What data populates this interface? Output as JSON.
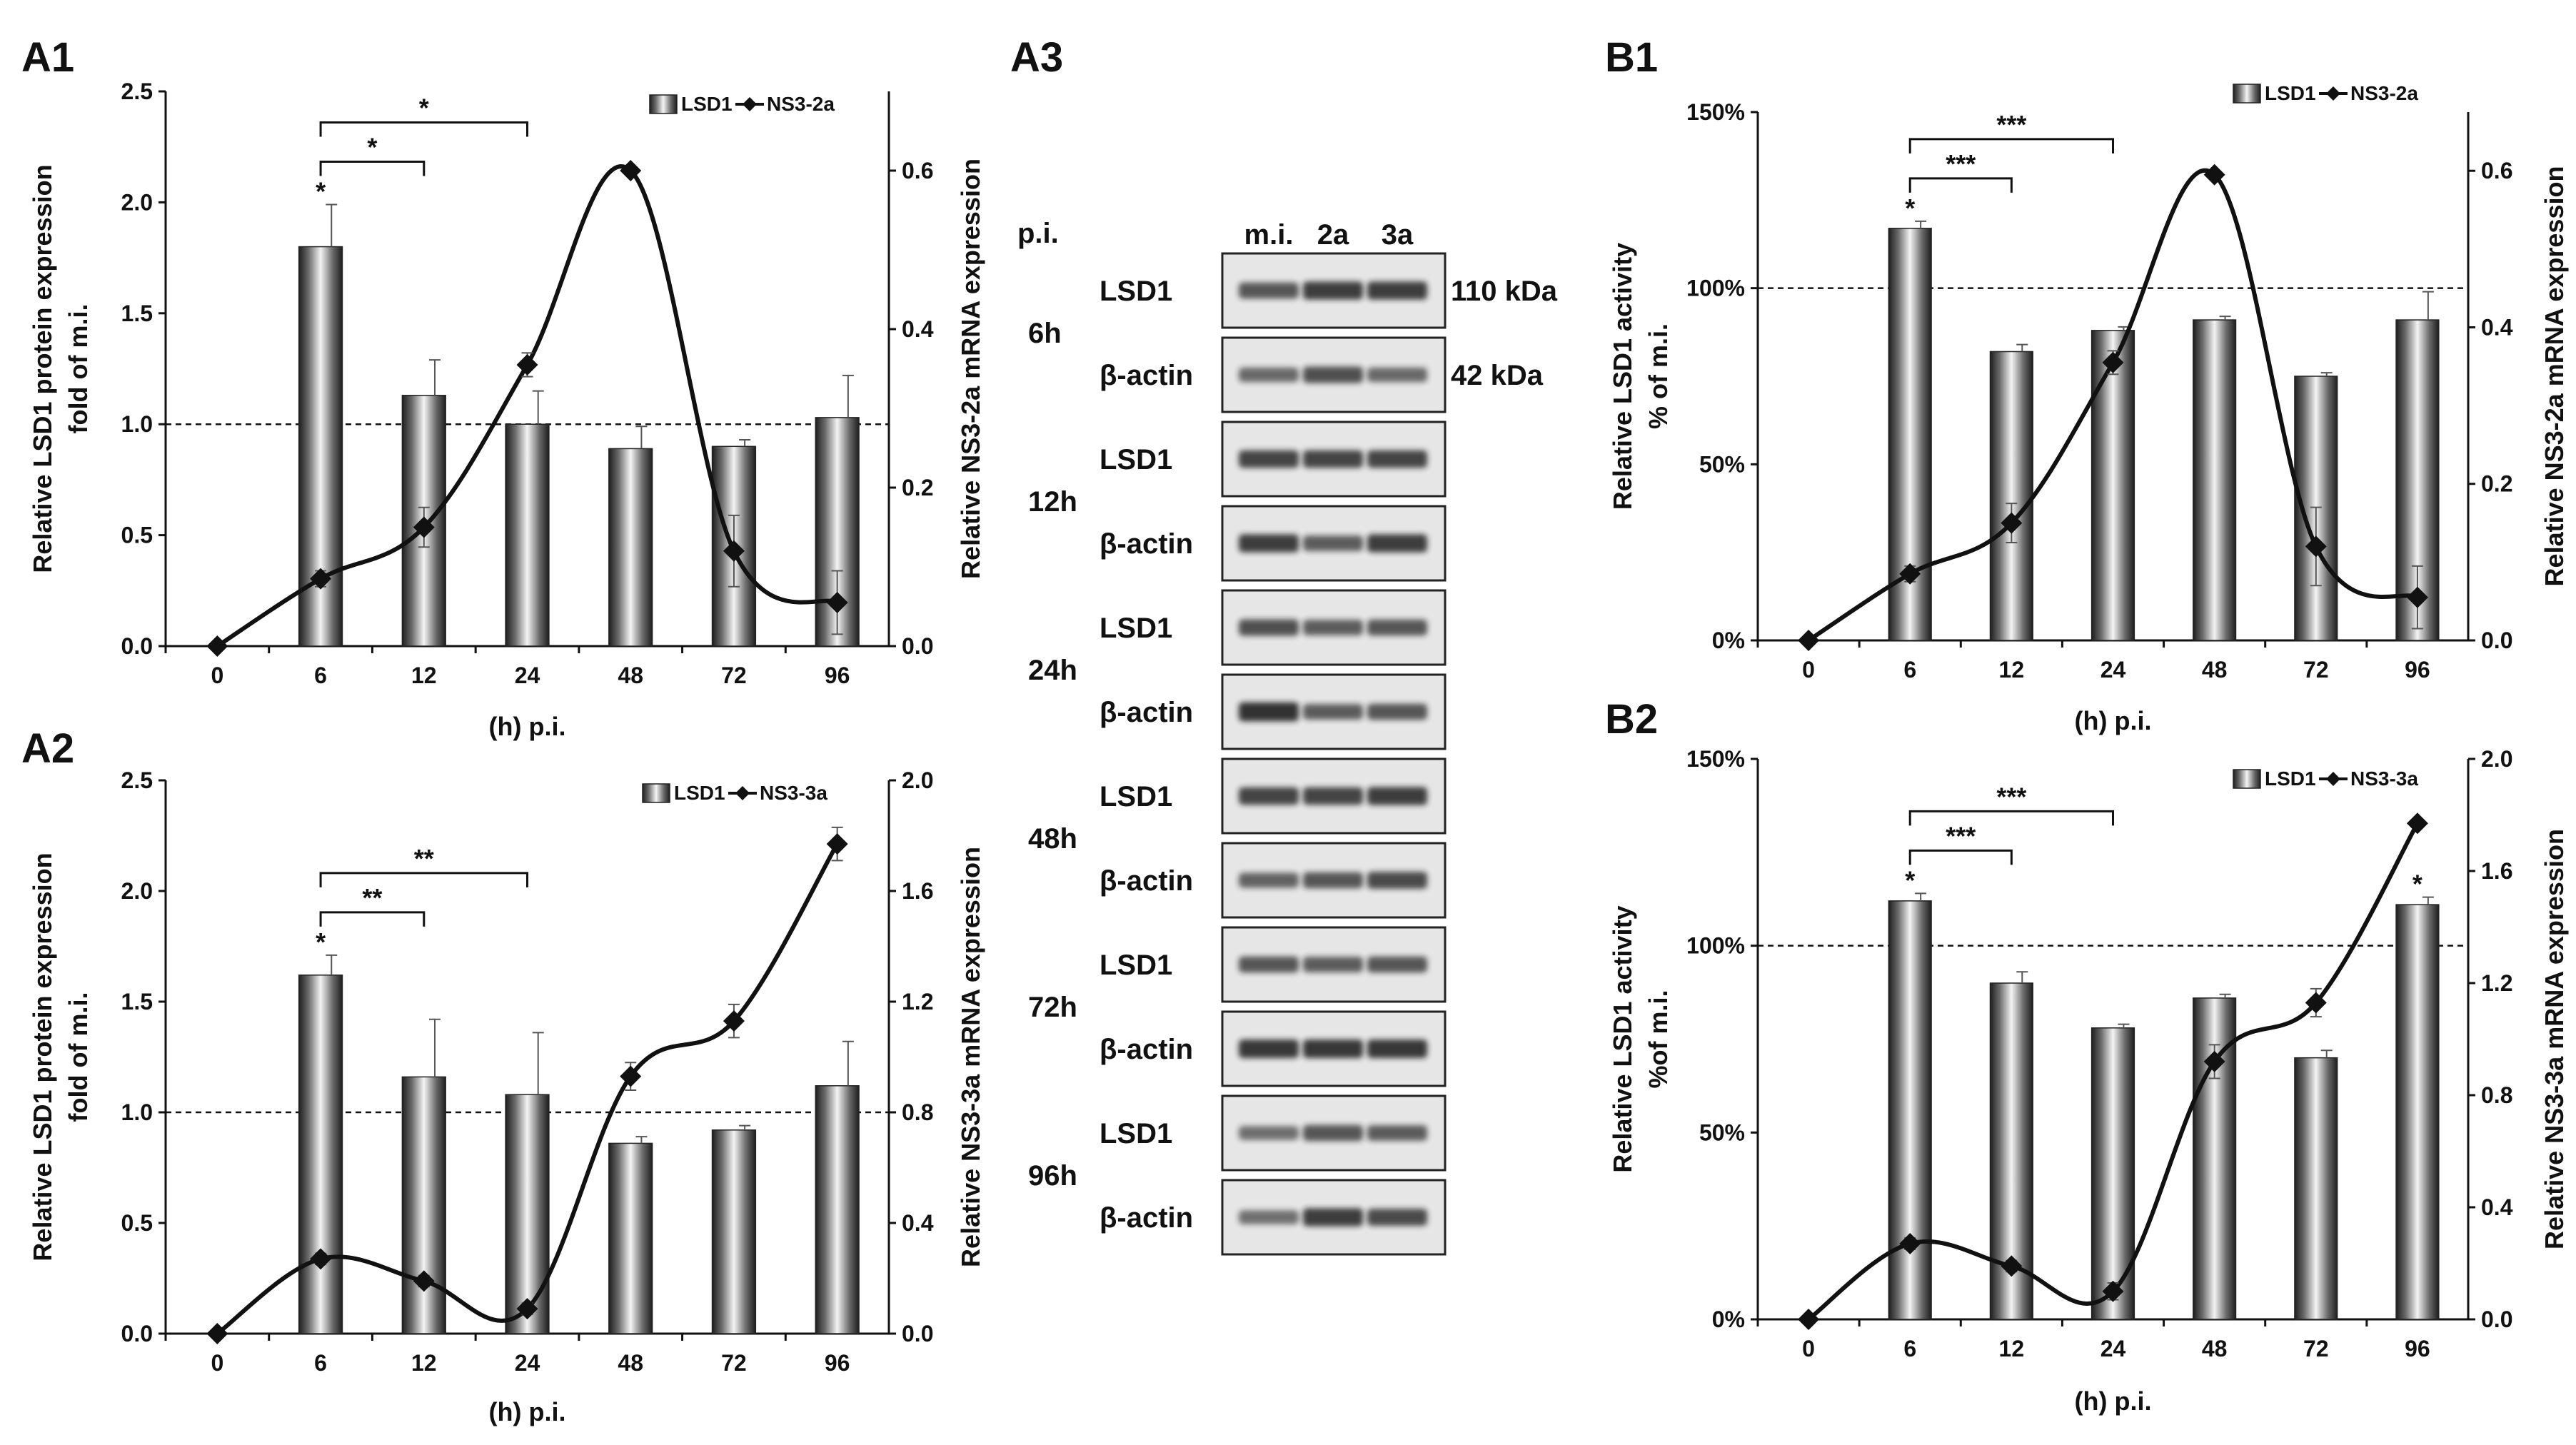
{
  "chart_data": [
    {
      "panel": "A1",
      "type": "bar+line",
      "categories": [
        "0",
        "6",
        "12",
        "24",
        "48",
        "72",
        "96"
      ],
      "xlabel": "(h) p.i.",
      "ylabel": [
        "Relative LSD1 protein expression",
        "fold of m.i."
      ],
      "ylabel_right": "Relative NS3-2a mRNA expression",
      "ylim": [
        0,
        2.5
      ],
      "yticks": [
        "0.0",
        "0.5",
        "1.0",
        "1.5",
        "2.0",
        "2.5"
      ],
      "ylim_right": [
        0,
        0.7
      ],
      "yticks_right": [
        "0.0",
        "0.2",
        "0.4",
        "0.6"
      ],
      "series": [
        {
          "name": "LSD1",
          "kind": "bar",
          "values": [
            null,
            1.8,
            1.13,
            1.0,
            0.89,
            0.9,
            1.03
          ],
          "errors": [
            null,
            0.19,
            0.16,
            0.15,
            0.1,
            0.03,
            0.19
          ]
        },
        {
          "name": "NS3-2a",
          "kind": "line",
          "values": [
            0.0,
            0.085,
            0.15,
            0.355,
            0.6,
            0.12,
            0.055
          ],
          "errors": [
            0,
            0.01,
            0.025,
            0.015,
            0,
            0.045,
            0.04
          ]
        }
      ],
      "refline": 1.0,
      "significance": [
        {
          "from": "6",
          "to": "24",
          "label": "*"
        },
        {
          "from": "6",
          "to": "12",
          "label": "*"
        }
      ],
      "bar_marks": [
        {
          "category": "6",
          "label": "*"
        }
      ],
      "legend": [
        "LSD1",
        "NS3-2a"
      ]
    },
    {
      "panel": "A2",
      "type": "bar+line",
      "categories": [
        "0",
        "6",
        "12",
        "24",
        "48",
        "72",
        "96"
      ],
      "xlabel": "(h) p.i.",
      "ylabel": [
        "Relative LSD1 protein expression",
        "fold of m.i."
      ],
      "ylabel_right": "Relative NS3-3a mRNA expression",
      "ylim": [
        0,
        2.5
      ],
      "yticks": [
        "0.0",
        "0.5",
        "1.0",
        "1.5",
        "2.0",
        "2.5"
      ],
      "ylim_right": [
        0,
        2.0
      ],
      "yticks_right": [
        "0.0",
        "0.4",
        "0.8",
        "1.2",
        "1.6",
        "2.0"
      ],
      "series": [
        {
          "name": "LSD1",
          "kind": "bar",
          "values": [
            null,
            1.62,
            1.16,
            1.08,
            0.86,
            0.92,
            1.12
          ],
          "errors": [
            null,
            0.09,
            0.26,
            0.28,
            0.03,
            0.02,
            0.2
          ]
        },
        {
          "name": "NS3-3a",
          "kind": "line",
          "values": [
            0.0,
            0.27,
            0.19,
            0.09,
            0.93,
            1.13,
            1.77
          ],
          "errors": [
            0,
            0.02,
            0.02,
            0.02,
            0.05,
            0.06,
            0.06
          ]
        }
      ],
      "refline": 1.0,
      "significance": [
        {
          "from": "6",
          "to": "24",
          "label": "**"
        },
        {
          "from": "6",
          "to": "12",
          "label": "**"
        }
      ],
      "bar_marks": [
        {
          "category": "6",
          "label": "*"
        }
      ],
      "legend": [
        "LSD1",
        "NS3-3a"
      ]
    },
    {
      "panel": "B1",
      "type": "bar+line",
      "categories": [
        "0",
        "6",
        "12",
        "24",
        "48",
        "72",
        "96"
      ],
      "xlabel": "(h) p.i.",
      "ylabel": [
        "Relative LSD1 activity",
        "% of m.i."
      ],
      "ylabel_right": "Relative NS3-2a mRNA expression",
      "ylim": [
        0,
        150
      ],
      "yticks": [
        "0%",
        "50%",
        "100%",
        "150%"
      ],
      "ylim_right": [
        0,
        0.675
      ],
      "yticks_right": [
        "0.0",
        "0.2",
        "0.4",
        "0.6"
      ],
      "series": [
        {
          "name": "LSD1",
          "kind": "bar",
          "values": [
            null,
            117,
            82,
            88,
            91,
            75,
            91
          ],
          "errors": [
            null,
            2,
            2,
            1,
            1,
            1,
            8
          ]
        },
        {
          "name": "NS3-2a",
          "kind": "line",
          "values": [
            0.0,
            0.085,
            0.15,
            0.355,
            0.595,
            0.12,
            0.055
          ],
          "errors": [
            0,
            0.01,
            0.025,
            0.015,
            0,
            0.05,
            0.04
          ]
        }
      ],
      "refline": 100,
      "significance": [
        {
          "from": "6",
          "to": "24",
          "label": "***"
        },
        {
          "from": "6",
          "to": "12",
          "label": "***"
        }
      ],
      "bar_marks": [
        {
          "category": "6",
          "label": "*"
        }
      ],
      "legend": [
        "LSD1",
        "NS3-2a"
      ]
    },
    {
      "panel": "B2",
      "type": "bar+line",
      "categories": [
        "0",
        "6",
        "12",
        "24",
        "48",
        "72",
        "96"
      ],
      "xlabel": "(h) p.i.",
      "ylabel": [
        "Relative LSD1 activity",
        "%of m.i."
      ],
      "ylabel_right": "Relative NS3-3a mRNA expression",
      "ylim": [
        0,
        150
      ],
      "yticks": [
        "0%",
        "50%",
        "100%",
        "150%"
      ],
      "ylim_right": [
        0,
        2.0
      ],
      "yticks_right": [
        "0.0",
        "0.4",
        "0.8",
        "1.2",
        "1.6",
        "2.0"
      ],
      "series": [
        {
          "name": "LSD1",
          "kind": "bar",
          "values": [
            null,
            112,
            90,
            78,
            86,
            70,
            111
          ],
          "errors": [
            null,
            2,
            3,
            1,
            1,
            2,
            2
          ]
        },
        {
          "name": "NS3-3a",
          "kind": "line",
          "values": [
            0.0,
            0.27,
            0.19,
            0.1,
            0.92,
            1.13,
            1.77
          ],
          "errors": [
            0,
            0.02,
            0.02,
            0.03,
            0.06,
            0.05,
            0
          ]
        }
      ],
      "refline": 100,
      "significance": [
        {
          "from": "6",
          "to": "24",
          "label": "***"
        },
        {
          "from": "6",
          "to": "12",
          "label": "***"
        }
      ],
      "bar_marks": [
        {
          "category": "6",
          "label": "*"
        },
        {
          "category": "96",
          "label": "*"
        }
      ],
      "legend": [
        "LSD1",
        "NS3-3a"
      ]
    }
  ],
  "blot": {
    "panel": "A3",
    "header_label": "p.i.",
    "lanes": [
      "m.i.",
      "2a",
      "3a"
    ],
    "sizes": [
      "110 kDa",
      "42 kDa"
    ],
    "rows": [
      {
        "time": "6h",
        "protein": "LSD1",
        "bands": [
          0.6,
          0.8,
          0.8
        ]
      },
      {
        "time": "6h",
        "protein": "β-actin",
        "bands": [
          0.45,
          0.65,
          0.45
        ]
      },
      {
        "time": "12h",
        "protein": "LSD1",
        "bands": [
          0.75,
          0.75,
          0.75
        ]
      },
      {
        "time": "12h",
        "protein": "β-actin",
        "bands": [
          0.8,
          0.55,
          0.8
        ]
      },
      {
        "time": "24h",
        "protein": "LSD1",
        "bands": [
          0.65,
          0.55,
          0.6
        ]
      },
      {
        "time": "24h",
        "protein": "β-actin",
        "bands": [
          0.9,
          0.55,
          0.6
        ]
      },
      {
        "time": "48h",
        "protein": "LSD1",
        "bands": [
          0.75,
          0.75,
          0.8
        ]
      },
      {
        "time": "48h",
        "protein": "β-actin",
        "bands": [
          0.5,
          0.6,
          0.7
        ]
      },
      {
        "time": "72h",
        "protein": "LSD1",
        "bands": [
          0.6,
          0.55,
          0.6
        ]
      },
      {
        "time": "72h",
        "protein": "β-actin",
        "bands": [
          0.85,
          0.85,
          0.85
        ]
      },
      {
        "time": "96h",
        "protein": "LSD1",
        "bands": [
          0.4,
          0.6,
          0.55
        ]
      },
      {
        "time": "96h",
        "protein": "β-actin",
        "bands": [
          0.4,
          0.8,
          0.7
        ]
      }
    ],
    "time_labels": [
      "6h",
      "12h",
      "24h",
      "48h",
      "72h",
      "96h"
    ]
  },
  "colors": {
    "ink": "#111111",
    "bar_dark": "#2a2a2a",
    "bar_light": "#f2f2f2",
    "blot_bg": "#e6e6e6",
    "band": "#1a1a1a"
  }
}
